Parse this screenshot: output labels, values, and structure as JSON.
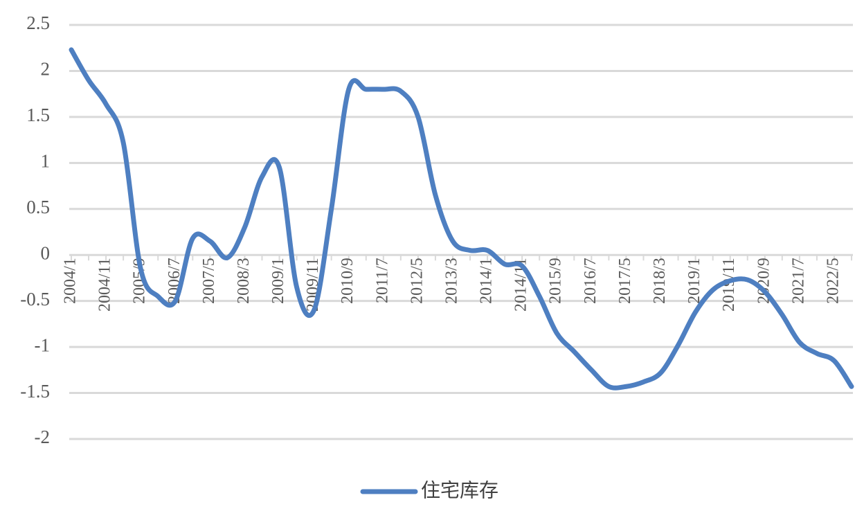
{
  "chart_data": {
    "type": "line",
    "categories": [
      "2004/1",
      null,
      "2004/11",
      null,
      "2005/9",
      null,
      "2006/7",
      null,
      "2007/5",
      null,
      "2008/3",
      null,
      "2009/1",
      null,
      "2009/11",
      null,
      "2010/9",
      null,
      "2011/7",
      null,
      "2012/5",
      null,
      "2013/3",
      null,
      "2014/1",
      null,
      "2014/11",
      null,
      "2015/9",
      null,
      "2016/7",
      null,
      "2017/5",
      null,
      "2018/3",
      null,
      "2019/1",
      null,
      "2019/11",
      null,
      "2020/9",
      null,
      "2021/7",
      null,
      "2022/5",
      null
    ],
    "series": [
      {
        "name": "住宅库存",
        "color": "#4e7fc1",
        "values": [
          2.23,
          1.9,
          1.64,
          1.22,
          -0.15,
          -0.45,
          -0.5,
          0.18,
          0.15,
          -0.03,
          0.3,
          0.85,
          0.95,
          -0.35,
          -0.6,
          0.5,
          1.8,
          1.8,
          1.8,
          1.78,
          1.5,
          0.65,
          0.15,
          0.05,
          0.05,
          -0.1,
          -0.12,
          -0.45,
          -0.85,
          -1.05,
          -1.25,
          -1.43,
          -1.43,
          -1.38,
          -1.28,
          -0.98,
          -0.62,
          -0.38,
          -0.28,
          -0.27,
          -0.4,
          -0.65,
          -0.95,
          -1.07,
          -1.15,
          -1.43
        ]
      }
    ],
    "ylim": [
      -2,
      2.5
    ],
    "yticks": [
      -2,
      -1.5,
      -1,
      -0.5,
      0,
      0.5,
      1,
      1.5,
      2,
      2.5
    ],
    "grid": true,
    "legend": "bottom"
  }
}
